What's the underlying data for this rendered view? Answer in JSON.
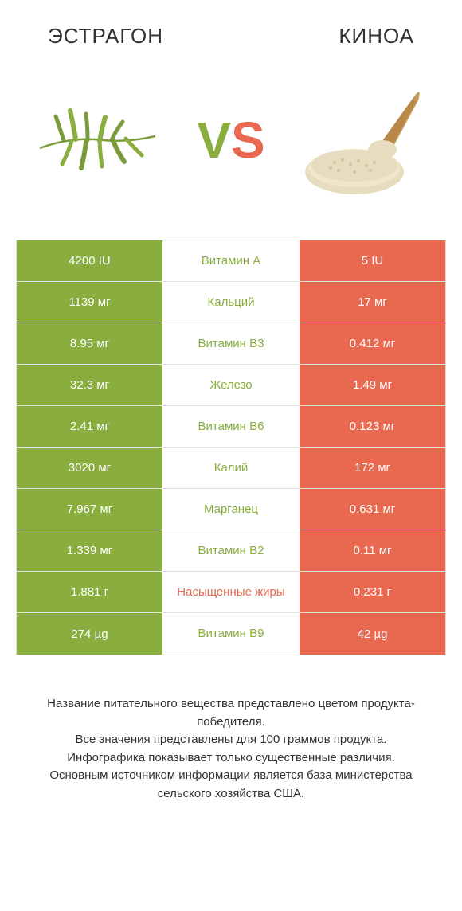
{
  "left_title": "ЭСТРАГОН",
  "right_title": "КИНОА",
  "vs_v": "V",
  "vs_s": "S",
  "colors": {
    "green": "#8aad3f",
    "orange": "#e8694f",
    "row_border": "#e0e0e0",
    "text": "#333333",
    "white": "#ffffff"
  },
  "rows": [
    {
      "left": "4200 IU",
      "label": "Витамин A",
      "right": "5 IU",
      "winner": "left"
    },
    {
      "left": "1139 мг",
      "label": "Кальций",
      "right": "17 мг",
      "winner": "left"
    },
    {
      "left": "8.95 мг",
      "label": "Витамин B3",
      "right": "0.412 мг",
      "winner": "left"
    },
    {
      "left": "32.3 мг",
      "label": "Железо",
      "right": "1.49 мг",
      "winner": "left"
    },
    {
      "left": "2.41 мг",
      "label": "Витамин B6",
      "right": "0.123 мг",
      "winner": "left"
    },
    {
      "left": "3020 мг",
      "label": "Калий",
      "right": "172 мг",
      "winner": "left"
    },
    {
      "left": "7.967 мг",
      "label": "Марганец",
      "right": "0.631 мг",
      "winner": "left"
    },
    {
      "left": "1.339 мг",
      "label": "Витамин B2",
      "right": "0.11 мг",
      "winner": "left"
    },
    {
      "left": "1.881 г",
      "label": "Насыщенные жиры",
      "right": "0.231 г",
      "winner": "right"
    },
    {
      "left": "274 µg",
      "label": "Витамин B9",
      "right": "42 µg",
      "winner": "left"
    }
  ],
  "footnote": "Название питательного вещества представлено цветом продукта-победителя.\nВсе значения представлены для 100 граммов продукта.\nИнфографика показывает только существенные различия.\nОсновным источником информации является база министерства сельского хозяйства США."
}
